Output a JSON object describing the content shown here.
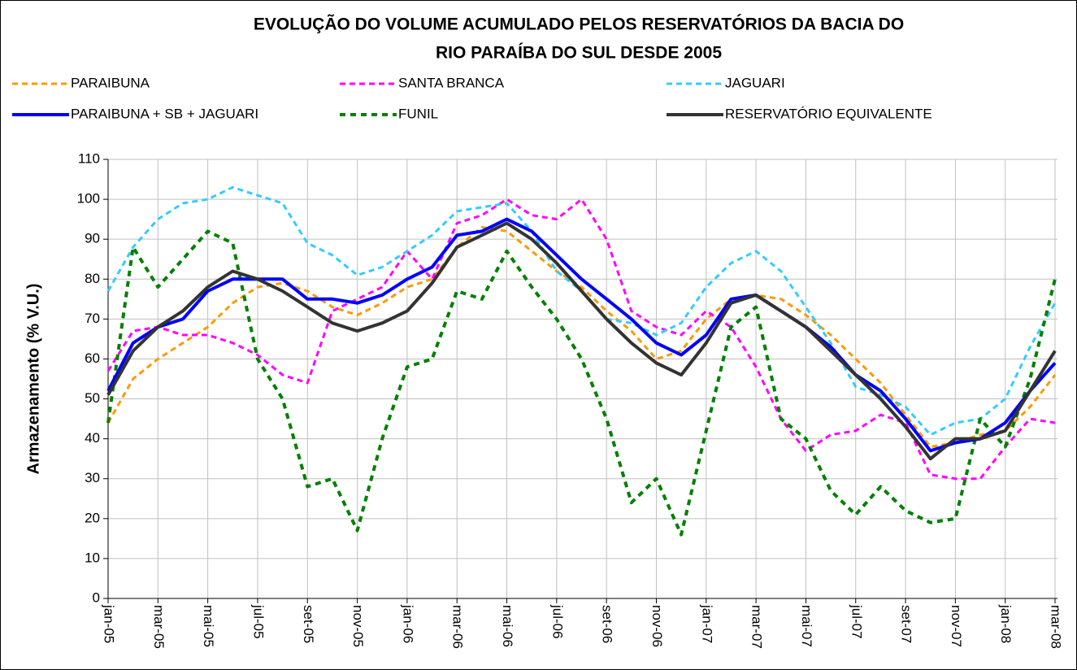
{
  "chart_data": {
    "type": "line",
    "title": [
      "EVOLUÇÃO DO VOLUME ACUMULADO PELOS RESERVATÓRIOS DA BACIA DO",
      "RIO PARAÍBA DO SUL DESDE 2005"
    ],
    "y_label": "Armazenamento (% V.U.)",
    "categories": [
      "jan-05",
      null,
      "mar-05",
      null,
      "mai-05",
      null,
      "jul-05",
      null,
      "set-05",
      null,
      "nov-05",
      null,
      "jan-06",
      null,
      "mar-06",
      null,
      "mai-06",
      null,
      "jul-06",
      null,
      "set-06",
      null,
      "nov-06",
      null,
      "jan-07",
      null,
      "mar-07",
      null,
      "mai-07",
      null,
      "jul-07",
      null,
      "set-07",
      null,
      "nov-07",
      null,
      "jan-08",
      null,
      "mar-08"
    ],
    "ylim": [
      0,
      110
    ],
    "yticks": [
      0,
      10,
      20,
      30,
      40,
      50,
      60,
      70,
      80,
      90,
      100,
      110
    ],
    "grid": true,
    "series": [
      {
        "name": "PARAIBUNA",
        "color": "#ff9900",
        "style": "dashed",
        "values": [
          44,
          55,
          60,
          64,
          68,
          74,
          78,
          79,
          77,
          73,
          71,
          74,
          78,
          80,
          88,
          93,
          92,
          87,
          82,
          78,
          72,
          67,
          60,
          62,
          70,
          75,
          76,
          75,
          71,
          66,
          60,
          54,
          46,
          38,
          39,
          41,
          42,
          48,
          56
        ]
      },
      {
        "name": "SANTA BRANCA",
        "color": "#ff00ff",
        "style": "dashed",
        "values": [
          57,
          67,
          68,
          66,
          66,
          64,
          61,
          56,
          54,
          72,
          75,
          78,
          87,
          80,
          94,
          96,
          100,
          96,
          95,
          100,
          90,
          72,
          68,
          66,
          72,
          68,
          58,
          45,
          37,
          41,
          42,
          46,
          44,
          31,
          30,
          30,
          38,
          45,
          44
        ]
      },
      {
        "name": "JAGUARI",
        "color": "#33ccff",
        "style": "dashed",
        "values": [
          77,
          88,
          95,
          99,
          100,
          103,
          101,
          99,
          89,
          86,
          81,
          83,
          87,
          91,
          97,
          98,
          99,
          92,
          82,
          77,
          70,
          69,
          66,
          69,
          78,
          84,
          87,
          82,
          73,
          64,
          53,
          51,
          48,
          41,
          44,
          45,
          50,
          63,
          74
        ]
      },
      {
        "name": "PARAIBUNA + SB + JAGUARI",
        "color": "#0000ff",
        "style": "solid-bold",
        "values": [
          52,
          64,
          68,
          70,
          77,
          80,
          80,
          80,
          75,
          75,
          74,
          76,
          80,
          83,
          91,
          92,
          95,
          92,
          86,
          80,
          75,
          70,
          64,
          61,
          66,
          75,
          76,
          72,
          68,
          63,
          56,
          52,
          45,
          37,
          39,
          40,
          44,
          52,
          59
        ]
      },
      {
        "name": "FUNIL",
        "color": "#008000",
        "style": "dashed-bold",
        "values": [
          44,
          88,
          78,
          85,
          92,
          89,
          60,
          50,
          28,
          30,
          17,
          40,
          58,
          60,
          77,
          75,
          87,
          78,
          70,
          60,
          45,
          24,
          30,
          16,
          42,
          68,
          73,
          45,
          40,
          27,
          21,
          28,
          22,
          19,
          20,
          45,
          38,
          55,
          80
        ]
      },
      {
        "name": "RESERVATÓRIO EQUIVALENTE",
        "color": "#333333",
        "style": "solid-bold",
        "values": [
          51,
          62,
          68,
          72,
          78,
          82,
          80,
          77,
          73,
          69,
          67,
          69,
          72,
          79,
          88,
          91,
          94,
          90,
          84,
          77,
          70,
          64,
          59,
          56,
          64,
          74,
          76,
          72,
          68,
          62,
          56,
          50,
          43,
          35,
          40,
          40,
          42,
          52,
          62
        ]
      }
    ]
  }
}
